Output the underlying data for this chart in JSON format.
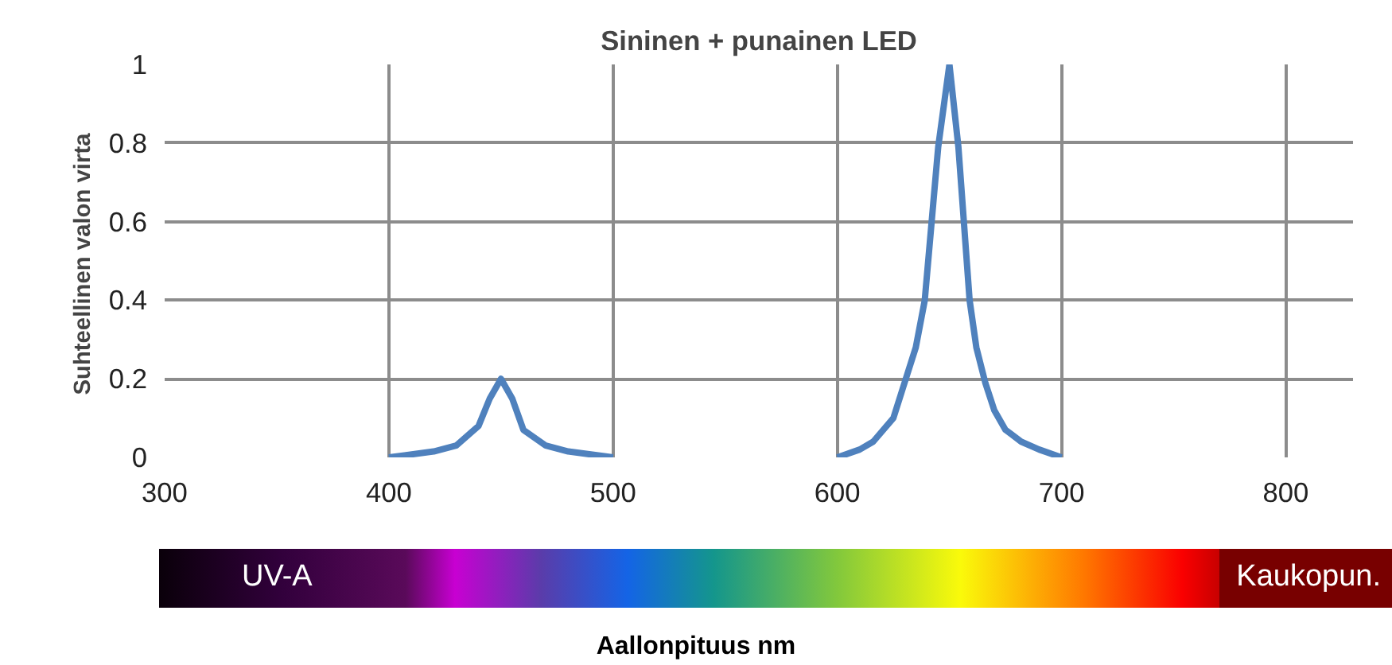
{
  "chart_data": {
    "type": "line",
    "title": "Sininen + punainen LED",
    "xlabel": "Aallonpituus nm",
    "ylabel": "Suhteellinen  valon virta",
    "x": [
      400,
      420,
      430,
      440,
      445,
      450,
      455,
      460,
      470,
      480,
      500,
      550,
      600,
      610,
      616,
      625,
      630,
      635,
      639,
      645,
      650,
      654,
      659,
      662,
      666,
      670,
      675,
      682,
      690,
      700
    ],
    "series": [
      {
        "color": "#4f81bd",
        "values": [
          0,
          0.015,
          0.03,
          0.08,
          0.15,
          0.2,
          0.15,
          0.07,
          0.03,
          0.015,
          0,
          null,
          0,
          0.02,
          0.04,
          0.1,
          0.19,
          0.28,
          0.4,
          0.79,
          1.0,
          0.79,
          0.4,
          0.28,
          0.19,
          0.12,
          0.07,
          0.04,
          0.02,
          0
        ]
      }
    ],
    "xlim": [
      300,
      830
    ],
    "ylim": [
      0,
      1
    ],
    "xticks": [
      300,
      400,
      500,
      600,
      700,
      800
    ],
    "yticks": [
      0,
      0.2,
      0.4,
      0.6,
      0.8,
      1
    ],
    "grid": true,
    "marker": "none",
    "line_style": "solid",
    "annotations": [
      "UV-A",
      "Kaukopun."
    ]
  }
}
